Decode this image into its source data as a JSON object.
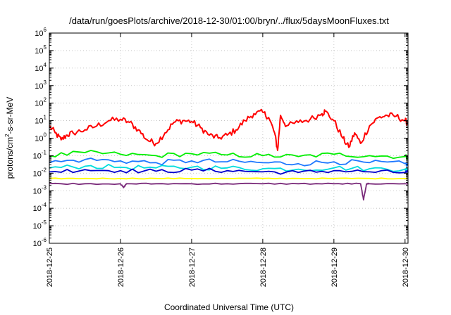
{
  "chart_data": {
    "type": "line",
    "title": "/data/run/goesPlots/archive/2018-12-30/01:00/bryn/../flux/5daysMoonFluxes.txt",
    "xlabel": "Coordinated Universal Time (UTC)",
    "ylabel": "protons/cm²-s-sr-MeV",
    "ylabel_parts": {
      "pre": "protons/cm",
      "sup": "2",
      "post": "-s-sr-MeV"
    },
    "x_ticks": [
      "2018-12-25",
      "2018-12-26",
      "2018-12-27",
      "2018-12-28",
      "2018-12-29",
      "2018-12-30"
    ],
    "xlim": [
      "2018-12-25",
      "2018-12-30 01:00"
    ],
    "y_scale": "log",
    "ylim": [
      1e-06,
      1000000.0
    ],
    "y_ticks": [
      {
        "base": "10",
        "exp": "-6"
      },
      {
        "base": "10",
        "exp": "-5"
      },
      {
        "base": "10",
        "exp": "-4"
      },
      {
        "base": "10",
        "exp": "-3"
      },
      {
        "base": "10",
        "exp": "-2"
      },
      {
        "base": "10",
        "exp": "-1"
      },
      {
        "base": "10",
        "exp": "0"
      },
      {
        "base": "10",
        "exp": "1"
      },
      {
        "base": "10",
        "exp": "2"
      },
      {
        "base": "10",
        "exp": "3"
      },
      {
        "base": "10",
        "exp": "4"
      },
      {
        "base": "10",
        "exp": "5"
      },
      {
        "base": "10",
        "exp": "6"
      }
    ],
    "grid": true,
    "legend": "none",
    "series": [
      {
        "color": "#ff0000",
        "x": [
          "2018-12-25 00:00",
          "2018-12-25 02:00",
          "2018-12-25 04:00",
          "2018-12-25 06:00",
          "2018-12-25 08:00",
          "2018-12-25 12:00",
          "2018-12-25 16:00",
          "2018-12-25 20:00",
          "2018-12-26 00:00",
          "2018-12-26 03:00",
          "2018-12-26 06:00",
          "2018-12-26 09:00",
          "2018-12-26 12:00",
          "2018-12-26 15:00",
          "2018-12-26 18:00",
          "2018-12-26 21:00",
          "2018-12-27 00:00",
          "2018-12-27 03:00",
          "2018-12-27 06:00",
          "2018-12-27 09:00",
          "2018-12-27 12:00",
          "2018-12-27 15:00",
          "2018-12-27 18:00",
          "2018-12-27 21:00",
          "2018-12-28 00:00",
          "2018-12-28 02:00",
          "2018-12-28 04:00",
          "2018-12-28 05:00",
          "2018-12-28 06:00",
          "2018-12-28 08:00",
          "2018-12-28 12:00",
          "2018-12-28 16:00",
          "2018-12-28 20:00",
          "2018-12-28 21:00",
          "2018-12-29 00:00",
          "2018-12-29 03:00",
          "2018-12-29 05:00",
          "2018-12-29 07:00",
          "2018-12-29 09:00",
          "2018-12-29 12:00",
          "2018-12-29 15:00",
          "2018-12-29 18:00",
          "2018-12-29 21:00",
          "2018-12-30 00:00",
          "2018-12-30 01:00"
        ],
        "y": [
          5,
          2,
          0.8,
          1.5,
          2,
          3,
          5,
          10,
          12,
          8,
          3,
          0.8,
          0.5,
          2,
          8,
          10,
          9,
          4,
          1.5,
          1,
          1.5,
          3,
          10,
          25,
          30,
          15,
          2,
          0.2,
          20,
          5,
          8,
          12,
          25,
          35,
          10,
          1,
          0.3,
          2,
          0.5,
          5,
          15,
          20,
          18,
          10,
          7
        ]
      },
      {
        "color": "#00ee00",
        "x": [
          "2018-12-25 00:00",
          "2018-12-25 12:00",
          "2018-12-26 00:00",
          "2018-12-26 12:00",
          "2018-12-27 00:00",
          "2018-12-27 12:00",
          "2018-12-28 00:00",
          "2018-12-28 12:00",
          "2018-12-29 00:00",
          "2018-12-29 12:00",
          "2018-12-30 00:00",
          "2018-12-30 01:00"
        ],
        "y": [
          0.1,
          0.15,
          0.12,
          0.1,
          0.13,
          0.11,
          0.1,
          0.09,
          0.12,
          0.1,
          0.09,
          0.08
        ]
      },
      {
        "color": "#1e78ff",
        "x": [
          "2018-12-25 00:00",
          "2018-12-25 12:00",
          "2018-12-26 00:00",
          "2018-12-26 12:00",
          "2018-12-27 00:00",
          "2018-12-27 12:00",
          "2018-12-28 00:00",
          "2018-12-28 12:00",
          "2018-12-29 00:00",
          "2018-12-29 12:00",
          "2018-12-30 00:00",
          "2018-12-30 01:00"
        ],
        "y": [
          0.04,
          0.06,
          0.05,
          0.04,
          0.05,
          0.045,
          0.04,
          0.035,
          0.045,
          0.04,
          0.035,
          0.03
        ]
      },
      {
        "color": "#00dddd",
        "x": [
          "2018-12-25 00:00",
          "2018-12-25 12:00",
          "2018-12-26 00:00",
          "2018-12-26 12:00",
          "2018-12-27 00:00",
          "2018-12-27 12:00",
          "2018-12-28 00:00",
          "2018-12-28 12:00",
          "2018-12-29 00:00",
          "2018-12-29 12:00",
          "2018-12-30 00:00",
          "2018-12-30 01:00"
        ],
        "y": [
          0.02,
          0.025,
          0.022,
          0.02,
          0.022,
          0.02,
          0.018,
          0.017,
          0.02,
          0.018,
          0.017,
          0.016
        ]
      },
      {
        "color": "#0000cc",
        "x": [
          "2018-12-25 00:00",
          "2018-12-25 12:00",
          "2018-12-26 00:00",
          "2018-12-26 12:00",
          "2018-12-27 00:00",
          "2018-12-27 12:00",
          "2018-12-28 00:00",
          "2018-12-28 12:00",
          "2018-12-29 00:00",
          "2018-12-29 12:00",
          "2018-12-30 00:00",
          "2018-12-30 01:00"
        ],
        "y": [
          0.012,
          0.016,
          0.014,
          0.013,
          0.015,
          0.014,
          0.012,
          0.011,
          0.014,
          0.012,
          0.011,
          0.011
        ]
      },
      {
        "color": "#ffff00",
        "x": [
          "2018-12-25 00:00",
          "2018-12-25 12:00",
          "2018-12-26 00:00",
          "2018-12-26 12:00",
          "2018-12-27 00:00",
          "2018-12-27 12:00",
          "2018-12-28 00:00",
          "2018-12-28 12:00",
          "2018-12-29 00:00",
          "2018-12-29 12:00",
          "2018-12-30 00:00",
          "2018-12-30 01:00"
        ],
        "y": [
          0.005,
          0.005,
          0.005,
          0.005,
          0.005,
          0.005,
          0.005,
          0.005,
          0.005,
          0.005,
          0.005,
          0.005
        ]
      },
      {
        "color": "#7a2a7a",
        "x": [
          "2018-12-25 00:00",
          "2018-12-25 12:00",
          "2018-12-26 00:00",
          "2018-12-26 01:00",
          "2018-12-26 02:00",
          "2018-12-26 12:00",
          "2018-12-27 00:00",
          "2018-12-27 12:00",
          "2018-12-28 00:00",
          "2018-12-28 12:00",
          "2018-12-29 00:00",
          "2018-12-29 09:00",
          "2018-12-29 10:00",
          "2018-12-29 11:00",
          "2018-12-29 12:00",
          "2018-12-30 00:00",
          "2018-12-30 01:00"
        ],
        "y": [
          0.0025,
          0.0025,
          0.0025,
          0.0015,
          0.0025,
          0.0025,
          0.0025,
          0.0025,
          0.0025,
          0.0025,
          0.0025,
          0.0025,
          0.0003,
          0.0025,
          0.0025,
          0.0025,
          0.0025
        ]
      }
    ]
  }
}
